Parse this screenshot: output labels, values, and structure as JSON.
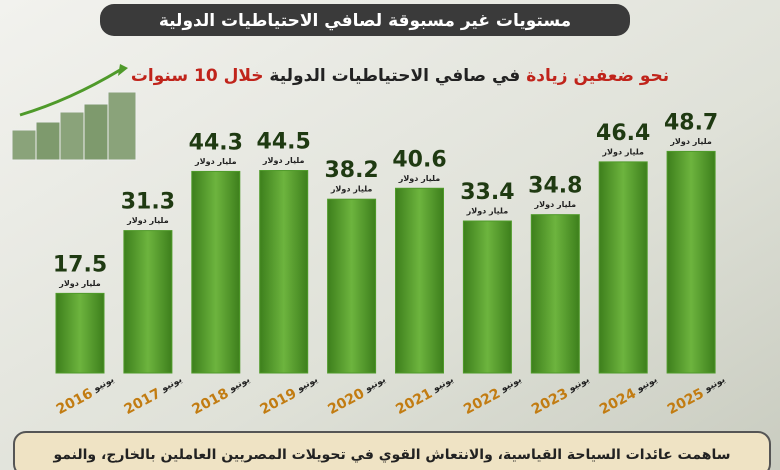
{
  "chart_data": {
    "type": "bar",
    "title": "مستويات غير مسبوقة لصافي الاحتياطيات الدولية",
    "subtitle_parts": [
      "نحو ضعفين زيادة",
      "في صافي الاحتياطيات الدولية",
      "خلال 10 سنوات"
    ],
    "month": "يونيو",
    "categories": [
      "2016",
      "2017",
      "2018",
      "2019",
      "2020",
      "2021",
      "2022",
      "2023",
      "2024",
      "2025"
    ],
    "values": [
      17.5,
      31.3,
      44.3,
      44.5,
      38.2,
      40.6,
      33.4,
      34.8,
      46.4,
      48.7
    ],
    "unit_label": "مليار دولار",
    "color": "#4f9a2a",
    "footer": "ساهمت عائدات السياحة القياسية، والانتعاش القوي في تحويلات المصريين العاملين بالخارج، والنمو"
  }
}
